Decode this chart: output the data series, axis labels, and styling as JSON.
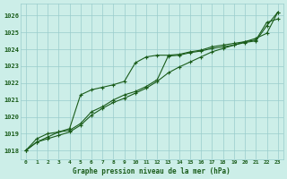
{
  "title": "Graphe pression niveau de la mer (hPa)",
  "background_color": "#cceee8",
  "grid_color": "#99cccc",
  "line_color": "#1a5c1a",
  "x_labels": [
    "0",
    "1",
    "2",
    "3",
    "4",
    "5",
    "6",
    "7",
    "8",
    "9",
    "10",
    "11",
    "12",
    "13",
    "14",
    "15",
    "16",
    "17",
    "18",
    "19",
    "20",
    "21",
    "22",
    "23"
  ],
  "ylim": [
    1017.5,
    1026.7
  ],
  "yticks": [
    1018,
    1019,
    1020,
    1021,
    1022,
    1023,
    1024,
    1025,
    1026
  ],
  "series1": [
    1018.0,
    1018.5,
    1018.8,
    1019.1,
    1019.2,
    1019.6,
    1020.3,
    1020.6,
    1021.0,
    1021.3,
    1021.5,
    1021.8,
    1022.2,
    1023.6,
    1023.65,
    1023.8,
    1023.9,
    1024.05,
    1024.15,
    1024.25,
    1024.4,
    1024.5,
    1025.4,
    1026.2
  ],
  "series2": [
    1018.0,
    1018.7,
    1019.0,
    1019.1,
    1019.3,
    1021.3,
    1021.6,
    1021.75,
    1021.9,
    1022.1,
    1023.2,
    1023.55,
    1023.65,
    1023.65,
    1023.7,
    1023.85,
    1023.95,
    1024.15,
    1024.25,
    1024.35,
    1024.45,
    1024.55,
    1025.6,
    1025.8
  ],
  "series3": [
    1018.0,
    1018.5,
    1018.7,
    1018.9,
    1019.1,
    1019.5,
    1020.1,
    1020.5,
    1020.85,
    1021.1,
    1021.4,
    1021.7,
    1022.1,
    1022.6,
    1022.95,
    1023.25,
    1023.55,
    1023.85,
    1024.05,
    1024.25,
    1024.45,
    1024.65,
    1024.95,
    1026.2
  ]
}
